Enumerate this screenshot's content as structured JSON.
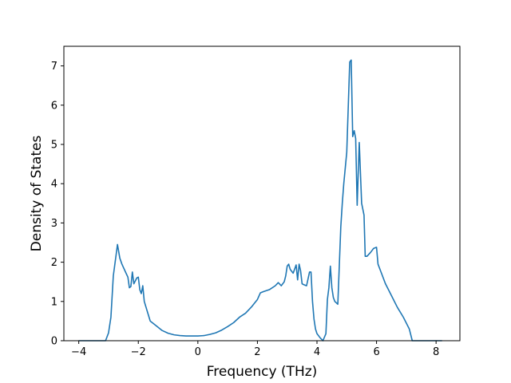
{
  "chart_data": {
    "type": "line",
    "title": "",
    "xlabel": "Frequency (THz)",
    "ylabel": "Density of States",
    "xlim": [
      -4.5,
      8.8
    ],
    "ylim": [
      0,
      7.5
    ],
    "xticks": [
      -4,
      -2,
      0,
      2,
      4,
      6,
      8
    ],
    "yticks": [
      0,
      1,
      2,
      3,
      4,
      5,
      6,
      7
    ],
    "xtick_labels": [
      "−4",
      "−2",
      "0",
      "2",
      "4",
      "6",
      "8"
    ],
    "ytick_labels": [
      "0",
      "1",
      "2",
      "3",
      "4",
      "5",
      "6",
      "7"
    ],
    "grid": false,
    "legend": false,
    "line_color": "#1f77b4",
    "series": [
      {
        "x": [
          -4.0,
          -3.5,
          -3.1,
          -3.0,
          -2.92,
          -2.84,
          -2.7,
          -2.62,
          -2.55,
          -2.4,
          -2.35,
          -2.3,
          -2.25,
          -2.2,
          -2.15,
          -2.05,
          -2.0,
          -1.95,
          -1.9,
          -1.85,
          -1.8,
          -1.6,
          -1.4,
          -1.2,
          -1.0,
          -0.8,
          -0.6,
          -0.4,
          -0.2,
          0.0,
          0.2,
          0.4,
          0.6,
          0.8,
          1.0,
          1.2,
          1.4,
          1.6,
          1.8,
          2.0,
          2.1,
          2.2,
          2.4,
          2.6,
          2.7,
          2.8,
          2.9,
          2.95,
          3.0,
          3.05,
          3.1,
          3.2,
          3.3,
          3.35,
          3.4,
          3.45,
          3.5,
          3.55,
          3.65,
          3.75,
          3.8,
          3.85,
          3.9,
          3.95,
          4.0,
          4.1,
          4.2,
          4.3,
          4.35,
          4.4,
          4.45,
          4.5,
          4.55,
          4.6,
          4.7,
          4.8,
          4.85,
          4.9,
          5.0,
          5.1,
          5.15,
          5.2,
          5.25,
          5.3,
          5.35,
          5.42,
          5.5,
          5.58,
          5.62,
          5.68,
          5.8,
          5.9,
          6.0,
          6.05,
          6.15,
          6.3,
          6.5,
          6.7,
          6.9,
          7.1,
          7.2,
          7.4,
          7.6,
          7.8,
          8.0,
          8.2
        ],
        "values": [
          0.0,
          0.0,
          0.0,
          0.2,
          0.6,
          1.65,
          2.45,
          2.1,
          1.95,
          1.7,
          1.62,
          1.35,
          1.38,
          1.75,
          1.45,
          1.6,
          1.62,
          1.3,
          1.2,
          1.4,
          1.0,
          0.5,
          0.38,
          0.26,
          0.19,
          0.15,
          0.13,
          0.12,
          0.12,
          0.12,
          0.13,
          0.16,
          0.2,
          0.27,
          0.36,
          0.46,
          0.6,
          0.7,
          0.86,
          1.05,
          1.22,
          1.25,
          1.3,
          1.4,
          1.48,
          1.4,
          1.5,
          1.65,
          1.9,
          1.95,
          1.82,
          1.72,
          1.93,
          1.55,
          1.95,
          1.78,
          1.45,
          1.43,
          1.4,
          1.75,
          1.75,
          1.0,
          0.55,
          0.3,
          0.18,
          0.08,
          0.0,
          0.18,
          1.05,
          1.35,
          1.9,
          1.35,
          1.1,
          1.0,
          0.93,
          2.9,
          3.5,
          4.0,
          4.8,
          7.1,
          7.15,
          5.2,
          5.35,
          5.15,
          3.45,
          5.05,
          3.5,
          3.2,
          2.15,
          2.15,
          2.25,
          2.35,
          2.38,
          1.95,
          1.75,
          1.45,
          1.15,
          0.85,
          0.6,
          0.3,
          0.0,
          0.0,
          0.0,
          0.0,
          0.0,
          0.0
        ]
      }
    ]
  }
}
